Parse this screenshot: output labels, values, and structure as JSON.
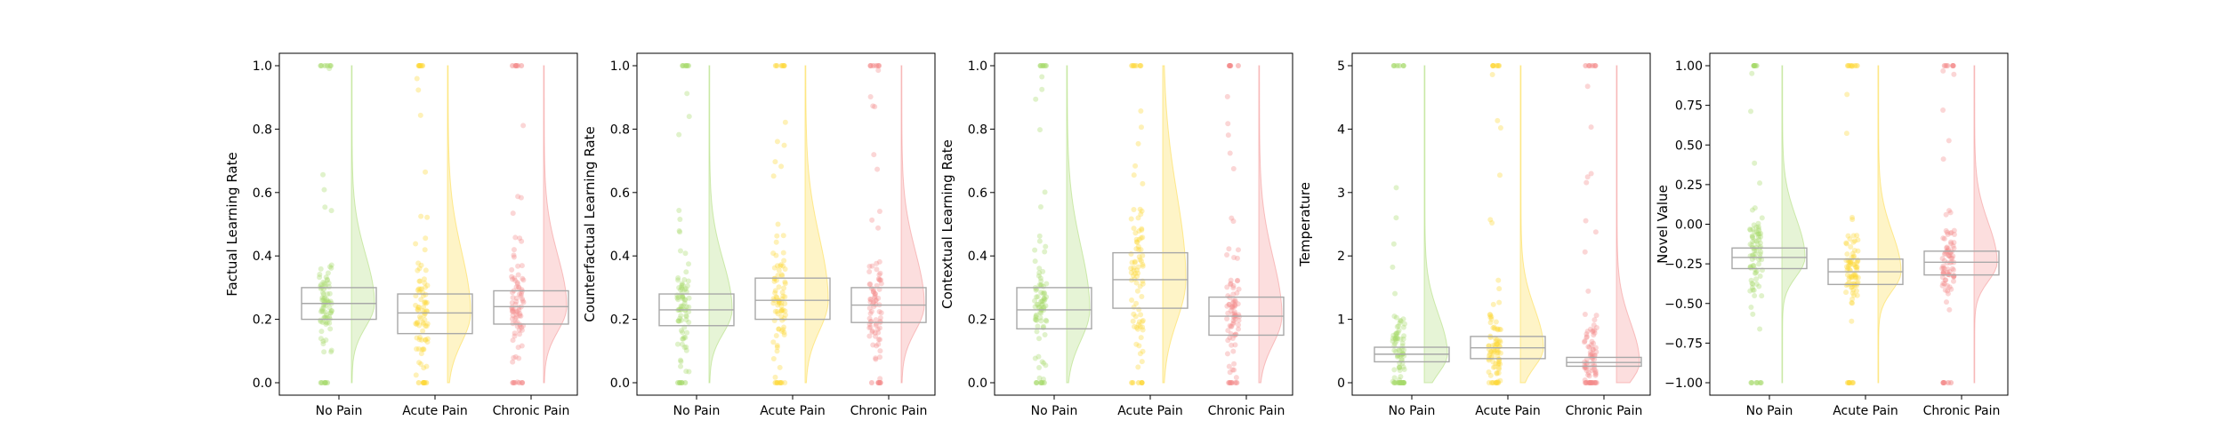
{
  "figure": {
    "group_colors": [
      "#a6d96a",
      "#fdd835",
      "#f48a8a"
    ],
    "box_color": "#a8a8a8"
  },
  "chart_data": [
    {
      "type": "raincloud",
      "ylabel": "Factual Learning Rate",
      "ylim": [
        0,
        1.0
      ],
      "yticks": [
        0.0,
        0.2,
        0.4,
        0.6,
        0.8,
        1.0
      ],
      "ytick_labels": [
        "0.0",
        "0.2",
        "0.4",
        "0.6",
        "0.8",
        "1.0"
      ],
      "categories": [
        "No Pain",
        "Acute Pain",
        "Chronic Pain"
      ],
      "boxes": [
        {
          "q1": 0.2,
          "median": 0.25,
          "q3": 0.3
        },
        {
          "q1": 0.155,
          "median": 0.22,
          "q3": 0.28
        },
        {
          "q1": 0.185,
          "median": 0.24,
          "q3": 0.29
        }
      ]
    },
    {
      "type": "raincloud",
      "ylabel": "Counterfactual Learning Rate",
      "ylim": [
        0,
        1.0
      ],
      "yticks": [
        0.0,
        0.2,
        0.4,
        0.6,
        0.8,
        1.0
      ],
      "ytick_labels": [
        "0.0",
        "0.2",
        "0.4",
        "0.6",
        "0.8",
        "1.0"
      ],
      "categories": [
        "No Pain",
        "Acute Pain",
        "Chronic Pain"
      ],
      "boxes": [
        {
          "q1": 0.18,
          "median": 0.23,
          "q3": 0.28
        },
        {
          "q1": 0.2,
          "median": 0.26,
          "q3": 0.33
        },
        {
          "q1": 0.19,
          "median": 0.245,
          "q3": 0.3
        }
      ]
    },
    {
      "type": "raincloud",
      "ylabel": "Contextual Learning Rate",
      "ylim": [
        0,
        1.0
      ],
      "yticks": [
        0.0,
        0.2,
        0.4,
        0.6,
        0.8,
        1.0
      ],
      "ytick_labels": [
        "0.0",
        "0.2",
        "0.4",
        "0.6",
        "0.8",
        "1.0"
      ],
      "categories": [
        "No Pain",
        "Acute Pain",
        "Chronic Pain"
      ],
      "boxes": [
        {
          "q1": 0.17,
          "median": 0.23,
          "q3": 0.3
        },
        {
          "q1": 0.235,
          "median": 0.325,
          "q3": 0.41
        },
        {
          "q1": 0.15,
          "median": 0.21,
          "q3": 0.27
        }
      ]
    },
    {
      "type": "raincloud",
      "ylabel": "Temperature",
      "ylim": [
        0,
        5
      ],
      "yticks": [
        0,
        1,
        2,
        3,
        4,
        5
      ],
      "ytick_labels": [
        "0",
        "1",
        "2",
        "3",
        "4",
        "5"
      ],
      "categories": [
        "No Pain",
        "Acute Pain",
        "Chronic Pain"
      ],
      "boxes": [
        {
          "q1": 0.33,
          "median": 0.45,
          "q3": 0.56
        },
        {
          "q1": 0.38,
          "median": 0.55,
          "q3": 0.73
        },
        {
          "q1": 0.26,
          "median": 0.32,
          "q3": 0.4
        }
      ]
    },
    {
      "type": "raincloud",
      "ylabel": "Novel Value",
      "ylim": [
        -1.0,
        1.0
      ],
      "yticks": [
        -1.0,
        -0.75,
        -0.5,
        -0.25,
        0.0,
        0.25,
        0.5,
        0.75,
        1.0
      ],
      "ytick_labels": [
        "−1.00",
        "−0.75",
        "−0.50",
        "−0.25",
        "0.00",
        "0.25",
        "0.50",
        "0.75",
        "1.00"
      ],
      "categories": [
        "No Pain",
        "Acute Pain",
        "Chronic Pain"
      ],
      "boxes": [
        {
          "q1": -0.28,
          "median": -0.21,
          "q3": -0.15
        },
        {
          "q1": -0.38,
          "median": -0.3,
          "q3": -0.22
        },
        {
          "q1": -0.32,
          "median": -0.24,
          "q3": -0.17
        }
      ]
    }
  ]
}
